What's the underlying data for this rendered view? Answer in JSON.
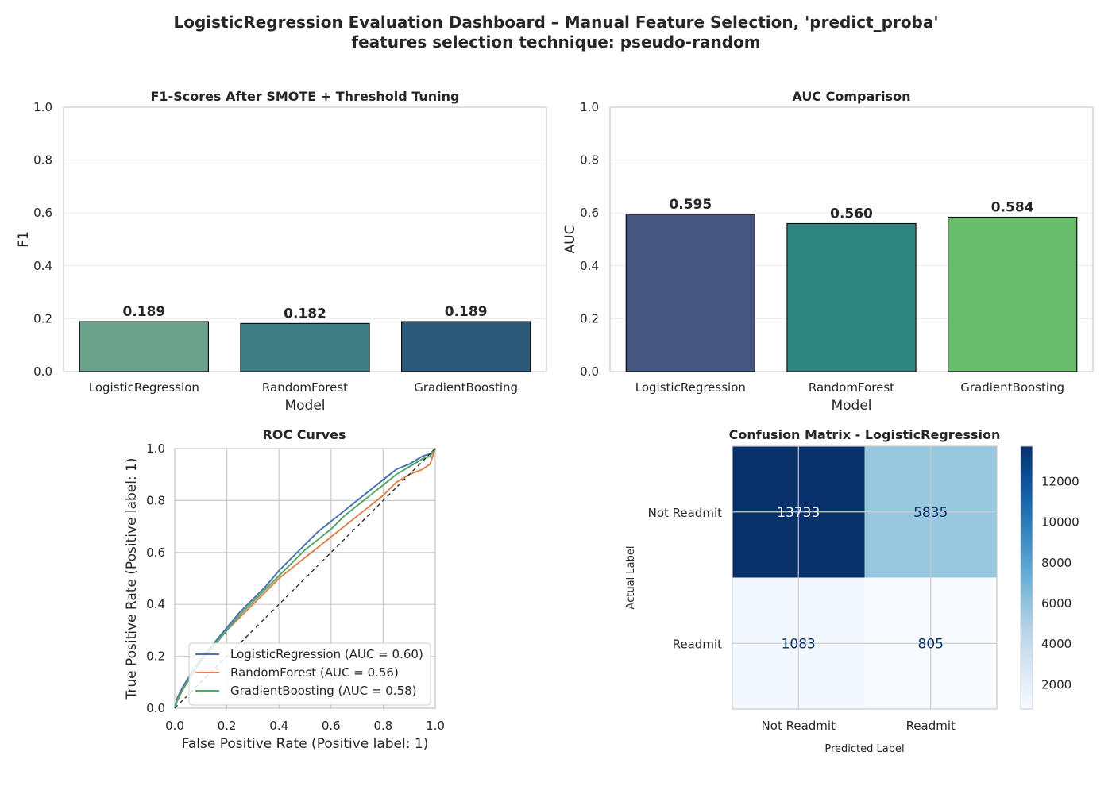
{
  "suptitle": {
    "line1": "LogisticRegression Evaluation Dashboard – Manual Feature Selection, 'predict_proba'",
    "line2": "features selection technique: pseudo-random"
  },
  "chart_data": [
    {
      "id": "f1",
      "type": "bar",
      "title": "F1-Scores After SMOTE + Threshold Tuning",
      "xlabel": "Model",
      "ylabel": "F1",
      "ylim": [
        0,
        1
      ],
      "yticks": [
        "0.0",
        "0.2",
        "0.4",
        "0.6",
        "0.8",
        "1.0"
      ],
      "categories": [
        "LogisticRegression",
        "RandomForest",
        "GradientBoosting"
      ],
      "values": [
        0.189,
        0.182,
        0.189
      ],
      "value_labels": [
        "0.189",
        "0.182",
        "0.189"
      ],
      "colors": [
        "#6aa28c",
        "#417e83",
        "#2d5a78"
      ],
      "grid": "horizontal"
    },
    {
      "id": "auc",
      "type": "bar",
      "title": "AUC Comparison",
      "xlabel": "Model",
      "ylabel": "AUC",
      "ylim": [
        0,
        1
      ],
      "yticks": [
        "0.0",
        "0.2",
        "0.4",
        "0.6",
        "0.8",
        "1.0"
      ],
      "categories": [
        "LogisticRegression",
        "RandomForest",
        "GradientBoosting"
      ],
      "values": [
        0.595,
        0.56,
        0.584
      ],
      "value_labels": [
        "0.595",
        "0.560",
        "0.584"
      ],
      "colors": [
        "#46587f",
        "#2e867f",
        "#6abd6c"
      ],
      "grid": "horizontal"
    },
    {
      "id": "roc",
      "type": "line",
      "title": "ROC Curves",
      "xlabel": "False Positive Rate (Positive label: 1)",
      "ylabel": "True Positive Rate (Positive label: 1)",
      "xlim": [
        0,
        1
      ],
      "ylim": [
        0,
        1
      ],
      "xticks": [
        "0.0",
        "0.2",
        "0.4",
        "0.6",
        "0.8",
        "1.0"
      ],
      "yticks": [
        "0.0",
        "0.2",
        "0.4",
        "0.6",
        "0.8",
        "1.0"
      ],
      "grid": "both",
      "legend_position": "lower-right",
      "series": [
        {
          "name": "LogisticRegression (AUC = 0.60)",
          "color": "#4c72b0",
          "x": [
            0,
            0.01,
            0.03,
            0.06,
            0.1,
            0.15,
            0.2,
            0.25,
            0.3,
            0.35,
            0.4,
            0.45,
            0.5,
            0.55,
            0.6,
            0.65,
            0.7,
            0.75,
            0.8,
            0.85,
            0.9,
            0.95,
            0.98,
            1.0
          ],
          "y": [
            0,
            0.04,
            0.08,
            0.13,
            0.19,
            0.25,
            0.31,
            0.37,
            0.42,
            0.47,
            0.53,
            0.58,
            0.63,
            0.68,
            0.72,
            0.76,
            0.8,
            0.84,
            0.88,
            0.92,
            0.94,
            0.97,
            0.98,
            1.0
          ]
        },
        {
          "name": "RandomForest (AUC = 0.56)",
          "color": "#dd8452",
          "x": [
            0,
            0.01,
            0.03,
            0.06,
            0.1,
            0.15,
            0.2,
            0.25,
            0.3,
            0.35,
            0.4,
            0.45,
            0.5,
            0.55,
            0.6,
            0.65,
            0.7,
            0.75,
            0.8,
            0.85,
            0.9,
            0.95,
            0.98,
            1.0
          ],
          "y": [
            0,
            0.03,
            0.07,
            0.12,
            0.18,
            0.24,
            0.3,
            0.35,
            0.4,
            0.45,
            0.5,
            0.54,
            0.58,
            0.62,
            0.66,
            0.7,
            0.74,
            0.78,
            0.82,
            0.87,
            0.9,
            0.92,
            0.94,
            1.0
          ]
        },
        {
          "name": "GradientBoosting (AUC = 0.58)",
          "color": "#55a868",
          "x": [
            0,
            0.01,
            0.03,
            0.06,
            0.1,
            0.15,
            0.2,
            0.25,
            0.3,
            0.35,
            0.4,
            0.45,
            0.5,
            0.55,
            0.6,
            0.65,
            0.7,
            0.75,
            0.8,
            0.85,
            0.9,
            0.95,
            0.98,
            1.0
          ],
          "y": [
            0,
            0.03,
            0.07,
            0.12,
            0.18,
            0.24,
            0.3,
            0.36,
            0.41,
            0.46,
            0.51,
            0.56,
            0.61,
            0.65,
            0.69,
            0.74,
            0.78,
            0.82,
            0.86,
            0.9,
            0.93,
            0.96,
            0.97,
            1.0
          ]
        },
        {
          "name": "",
          "color": "#262626",
          "dashed": true,
          "x": [
            0,
            1
          ],
          "y": [
            0,
            1
          ]
        }
      ]
    },
    {
      "id": "cm",
      "type": "heatmap",
      "title": "Confusion Matrix - LogisticRegression",
      "xlabel": "Predicted Label",
      "ylabel": "Actual Label",
      "x_categories": [
        "Not Readmit",
        "Readmit"
      ],
      "y_categories": [
        "Not Readmit",
        "Readmit"
      ],
      "values": [
        [
          13733,
          5835
        ],
        [
          1083,
          805
        ]
      ],
      "value_labels": [
        [
          "13733",
          "5835"
        ],
        [
          "1083",
          "805"
        ]
      ],
      "colormap": "Blues",
      "vmin": 805,
      "vmax": 13733,
      "colorbar_ticks": [
        "2000",
        "4000",
        "6000",
        "8000",
        "10000",
        "12000"
      ],
      "colorbar_values": [
        2000,
        4000,
        6000,
        8000,
        10000,
        12000
      ]
    }
  ]
}
